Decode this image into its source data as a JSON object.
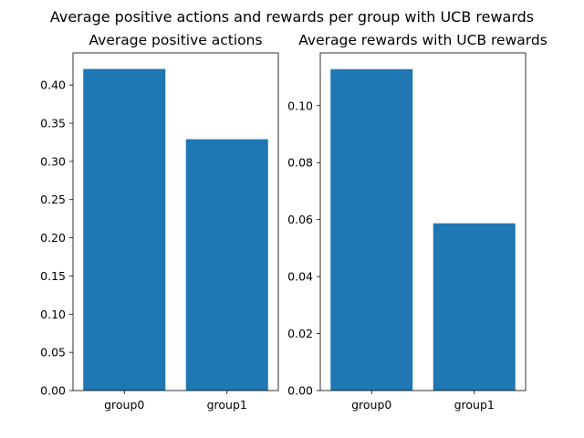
{
  "figure": {
    "title": "Average positive actions and rewards per group with UCB rewards"
  },
  "colors": {
    "bar": "#1f77b4",
    "axes": "#000000",
    "background": "#ffffff"
  },
  "chart_data": [
    {
      "type": "bar",
      "title": "Average positive actions",
      "categories": [
        "group0",
        "group1"
      ],
      "values": [
        0.421,
        0.329
      ],
      "xlabel": "",
      "ylabel": "",
      "ylim": [
        0,
        0.442
      ],
      "yticks": [
        0.0,
        0.05,
        0.1,
        0.15,
        0.2,
        0.25,
        0.3,
        0.35,
        0.4
      ],
      "ytick_labels": [
        "0.00",
        "0.05",
        "0.10",
        "0.15",
        "0.20",
        "0.25",
        "0.30",
        "0.35",
        "0.40"
      ],
      "grid": false
    },
    {
      "type": "bar",
      "title": "Average rewards with UCB rewards",
      "categories": [
        "group0",
        "group1"
      ],
      "values": [
        0.1128,
        0.0587
      ],
      "xlabel": "",
      "ylabel": "",
      "ylim": [
        0,
        0.1185
      ],
      "yticks": [
        0.0,
        0.02,
        0.04,
        0.06,
        0.08,
        0.1
      ],
      "ytick_labels": [
        "0.00",
        "0.02",
        "0.04",
        "0.06",
        "0.08",
        "0.10"
      ],
      "grid": false
    }
  ]
}
